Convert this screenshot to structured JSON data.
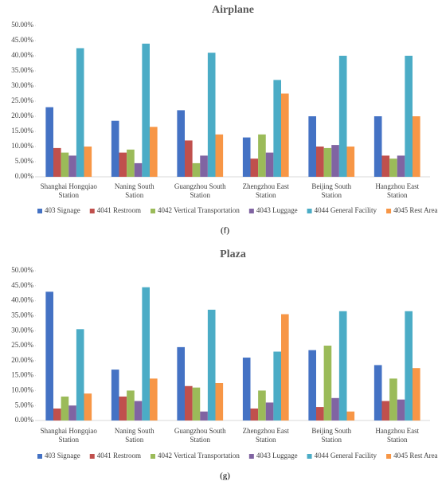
{
  "chart_data": [
    {
      "type": "bar",
      "title": "Airplane",
      "caption": "(f)",
      "categories": [
        "Shanghai Hongqiao Station",
        "Naning South Sation",
        "Guangzhou South Station",
        "Zhengzhou East Station",
        "Beijing South Station",
        "Hangzhou East Station"
      ],
      "series": [
        {
          "name": "403 Signage",
          "color": "#4472c4",
          "values": [
            23,
            18.5,
            22,
            13,
            20,
            20
          ]
        },
        {
          "name": "4041 Restroom",
          "color": "#c0504d",
          "values": [
            9.5,
            8,
            12,
            6,
            10,
            7
          ]
        },
        {
          "name": "4042 Vertical Transportation",
          "color": "#9bbb59",
          "values": [
            8,
            9,
            4.5,
            14,
            9.5,
            6
          ]
        },
        {
          "name": "4043 Luggage",
          "color": "#8064a2",
          "values": [
            7,
            4.5,
            7,
            8,
            10.5,
            7
          ]
        },
        {
          "name": "4044 General Facility",
          "color": "#4bacc6",
          "values": [
            42.5,
            44,
            41,
            32,
            40,
            40
          ]
        },
        {
          "name": "4045 Rest Area",
          "color": "#f79646",
          "values": [
            10,
            16.5,
            14,
            27.5,
            10,
            20
          ]
        }
      ],
      "ylim": [
        0,
        50
      ],
      "yticks": [
        {
          "value": 0,
          "label": "0.00%"
        },
        {
          "value": 5,
          "label": "5.00%"
        },
        {
          "value": 10,
          "label": "10.00%"
        },
        {
          "value": 15,
          "label": "15.00%"
        },
        {
          "value": 20,
          "label": "20.00%"
        },
        {
          "value": 25,
          "label": "25.00%"
        },
        {
          "value": 30,
          "label": "30.00%"
        },
        {
          "value": 35,
          "label": "35.00%"
        },
        {
          "value": 40,
          "label": "40.00%"
        },
        {
          "value": 45,
          "label": "45.00%"
        },
        {
          "value": 50,
          "label": "50.00%"
        }
      ],
      "legend": "bottom"
    },
    {
      "type": "bar",
      "title": "Plaza",
      "caption": "(g)",
      "categories": [
        "Shanghai Hongqiao Station",
        "Naning South Sation",
        "Guangzhou South Station",
        "Zhengzhou East Station",
        "Beijing South Station",
        "Hangzhou East Station"
      ],
      "series": [
        {
          "name": "403 Signage",
          "color": "#4472c4",
          "values": [
            43,
            17,
            24.5,
            21,
            23.5,
            18.5
          ]
        },
        {
          "name": "4041 Restroom",
          "color": "#c0504d",
          "values": [
            4,
            8,
            11.5,
            4,
            4.5,
            6.5
          ]
        },
        {
          "name": "4042 Vertical Transportation",
          "color": "#9bbb59",
          "values": [
            8,
            10,
            11,
            10,
            25,
            14
          ]
        },
        {
          "name": "4043 Luggage",
          "color": "#8064a2",
          "values": [
            5,
            6.5,
            3,
            6,
            7.5,
            7
          ]
        },
        {
          "name": "4044 General Facility",
          "color": "#4bacc6",
          "values": [
            30.5,
            44.5,
            37,
            23,
            36.5,
            36.5
          ]
        },
        {
          "name": "4045 Rest Area",
          "color": "#f79646",
          "values": [
            9,
            14,
            12.5,
            35.5,
            3,
            17.5
          ]
        }
      ],
      "ylim": [
        0,
        50
      ],
      "yticks": [
        {
          "value": 0,
          "label": "0.00%"
        },
        {
          "value": 5,
          "label": "5.00%"
        },
        {
          "value": 10,
          "label": "10.00%"
        },
        {
          "value": 15,
          "label": "15.00%"
        },
        {
          "value": 20,
          "label": "20.00%"
        },
        {
          "value": 25,
          "label": "25.00%"
        },
        {
          "value": 30,
          "label": "30.00%"
        },
        {
          "value": 35,
          "label": "35.00%"
        },
        {
          "value": 40,
          "label": "40.00%"
        },
        {
          "value": 45,
          "label": "45.00%"
        },
        {
          "value": 50,
          "label": "50.00%"
        }
      ],
      "legend": "bottom"
    }
  ]
}
